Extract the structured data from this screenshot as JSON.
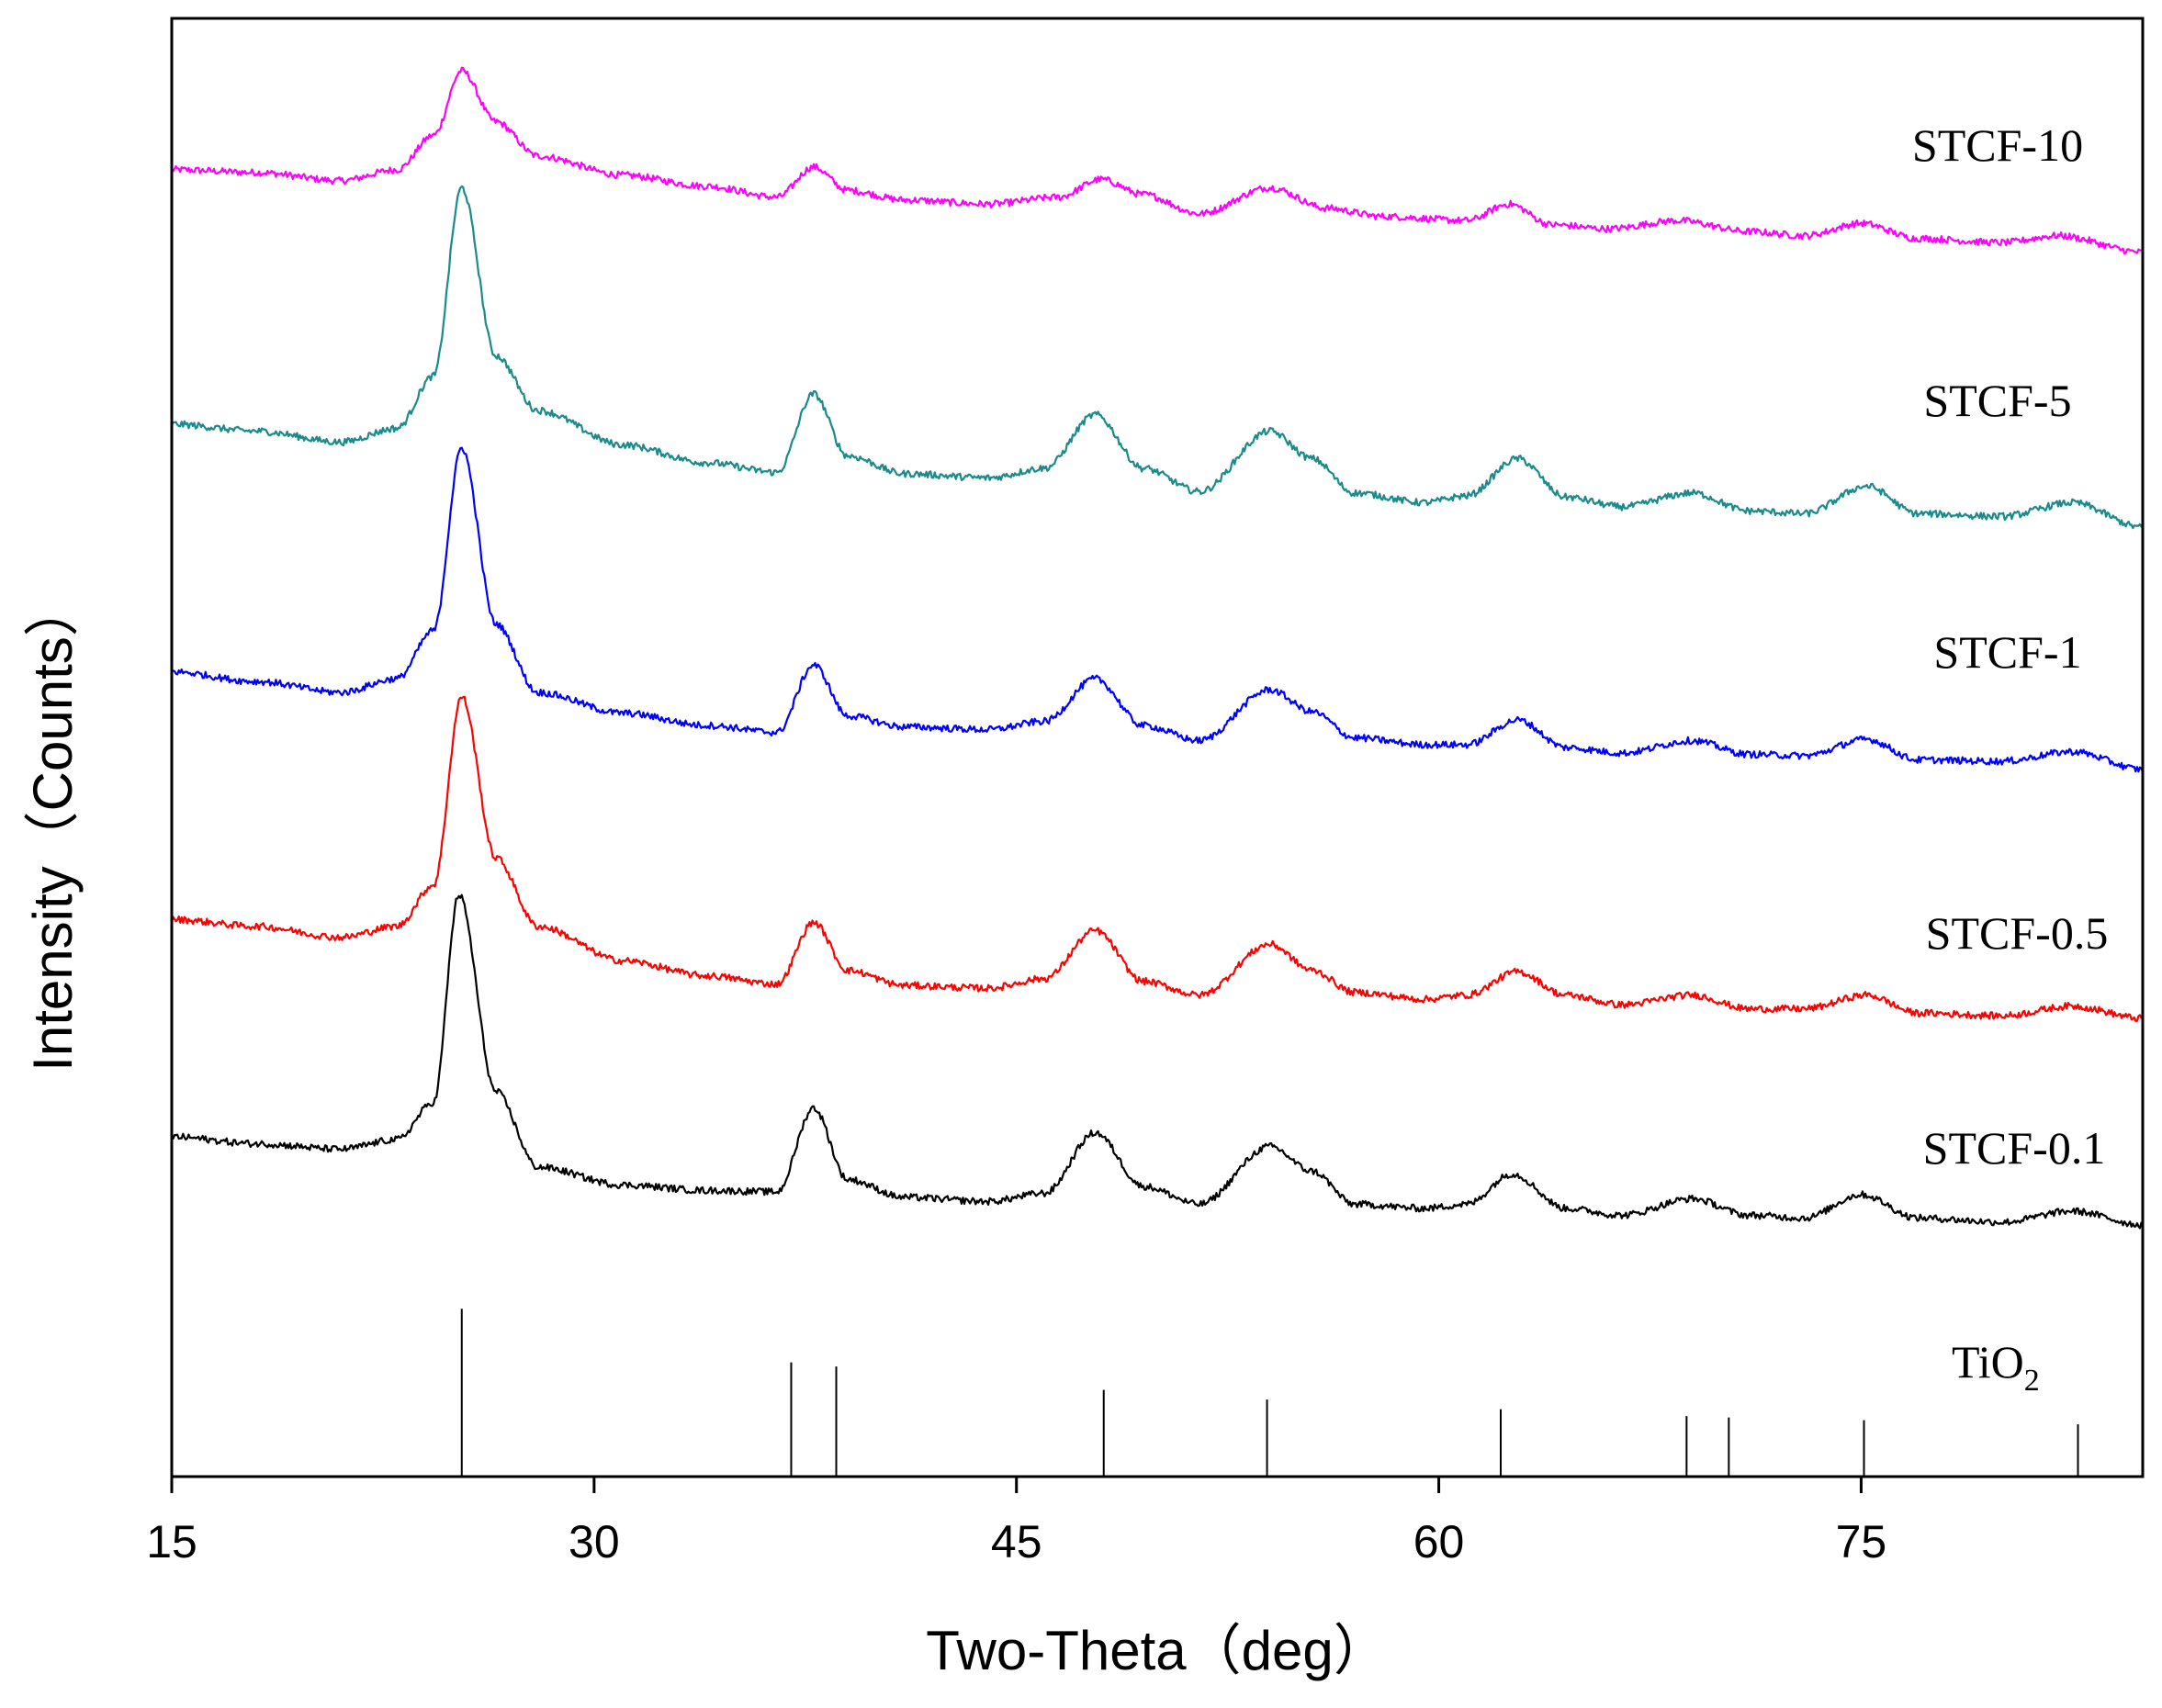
{
  "chart_data": {
    "type": "line",
    "title": "",
    "xlabel": "Two-Theta（deg）",
    "ylabel": "Intensity（Counts）",
    "xlim": [
      15,
      85
    ],
    "ylim": [
      0,
      1060
    ],
    "x_ticks": [
      15,
      30,
      45,
      60,
      75
    ],
    "x_tick_labels": [
      "15",
      "30",
      "45",
      "60",
      "75"
    ],
    "y_ticks_shown": false,
    "grid": false,
    "legend": "none; series labeled inline at right",
    "series": [
      {
        "name": "STCF-10",
        "label": "STCF-10",
        "color": "#ff00ff",
        "x": [
          15,
          18,
          21,
          23,
          24.3,
          25.3,
          26.5,
          28,
          31,
          34,
          36.5,
          37.8,
          39,
          41,
          44,
          46.5,
          48,
          49.5,
          51.5,
          54,
          56,
          58,
          61,
          62.5,
          64,
          66,
          68.5,
          71,
          73,
          75,
          77,
          80,
          82,
          85
        ],
        "y": [
          950,
          948,
          942,
          950,
          975,
          1022,
          985,
          960,
          946,
          938,
          930,
          952,
          935,
          928,
          925,
          930,
          943,
          932,
          918,
          937,
          922,
          916,
          913,
          925,
          910,
          907,
          913,
          905,
          902,
          911,
          900,
          897,
          902,
          890
        ]
      },
      {
        "name": "STCF-5",
        "label": "STCF-5",
        "color": "#1a8a8a",
        "x": [
          15,
          18,
          21,
          23,
          24.3,
          25.3,
          26.5,
          28,
          31,
          34,
          36.5,
          37.8,
          39,
          41,
          44,
          46,
          47.8,
          49.5,
          51.5,
          54,
          55.5,
          57,
          59.5,
          61,
          62.8,
          64.5,
          66.5,
          69,
          71,
          73,
          75.2,
          77,
          80,
          82.5,
          85
        ],
        "y": [
          765,
          760,
          752,
          762,
          800,
          937,
          815,
          775,
          750,
          737,
          730,
          787,
          742,
          729,
          726,
          733,
          772,
          733,
          716,
          760,
          740,
          715,
          708,
          713,
          740,
          712,
          705,
          715,
          702,
          700,
          720,
          700,
          698,
          708,
          690
        ]
      },
      {
        "name": "STCF-1",
        "label": "STCF-1",
        "color": "#0000ff",
        "x": [
          15,
          18,
          21,
          23,
          24.3,
          25.3,
          26.5,
          28,
          31,
          34,
          36.5,
          37.8,
          39,
          41,
          44,
          46,
          47.8,
          49.5,
          51.5,
          54,
          55.5,
          57,
          59.5,
          61,
          62.8,
          64.5,
          66.5,
          69,
          71,
          73,
          75.2,
          77,
          80,
          82.5,
          85
        ],
        "y": [
          585,
          578,
          570,
          580,
          615,
          748,
          620,
          570,
          555,
          546,
          541,
          590,
          553,
          545,
          543,
          549,
          580,
          546,
          535,
          572,
          556,
          537,
          532,
          532,
          550,
          530,
          526,
          535,
          525,
          524,
          536,
          521,
          520,
          527,
          514
        ]
      },
      {
        "name": "STCF-0.5",
        "label": "STCF-0.5",
        "color": "#ff0000",
        "x": [
          15,
          18,
          21,
          23,
          24.3,
          25.3,
          26.5,
          28,
          31,
          34,
          36.5,
          37.8,
          39,
          41,
          44,
          46,
          47.8,
          49.5,
          51.5,
          54,
          55.5,
          57,
          59.5,
          61,
          62.8,
          64.5,
          66.5,
          69,
          71,
          73,
          75.2,
          77,
          80,
          82.5,
          85
        ],
        "y": [
          405,
          400,
          392,
          400,
          430,
          567,
          450,
          400,
          375,
          364,
          358,
          403,
          368,
          357,
          355,
          362,
          397,
          360,
          350,
          387,
          368,
          352,
          347,
          350,
          367,
          350,
          343,
          350,
          340,
          340,
          350,
          337,
          335,
          342,
          333
        ]
      },
      {
        "name": "STCF-0.1",
        "label": "STCF-0.1",
        "color": "#000000",
        "x": [
          15,
          18,
          21,
          23,
          24.3,
          25.2,
          26.5,
          28,
          31,
          34,
          36.5,
          37.8,
          39,
          41,
          44,
          46,
          47.8,
          49.5,
          51.5,
          54,
          55.5,
          57,
          59.5,
          61,
          62.6,
          64.5,
          66.5,
          69,
          71,
          73,
          75,
          77,
          80,
          82.5,
          85
        ],
        "y": [
          247,
          242,
          238,
          245,
          272,
          423,
          280,
          225,
          212,
          208,
          207,
          268,
          216,
          203,
          200,
          206,
          250,
          211,
          198,
          240,
          222,
          198,
          195,
          198,
          220,
          195,
          190,
          202,
          190,
          188,
          205,
          188,
          185,
          193,
          183
        ]
      }
    ],
    "reference_pattern": {
      "name": "TiO2",
      "label_main": "TiO",
      "label_sub": "2",
      "color": "#000000",
      "type": "stick",
      "x": [
        25.3,
        37.0,
        38.6,
        48.1,
        53.9,
        62.2,
        68.8,
        70.3,
        75.1,
        82.7
      ],
      "y": [
        122,
        83,
        80,
        63,
        56,
        49,
        44,
        43,
        41,
        38
      ]
    }
  }
}
